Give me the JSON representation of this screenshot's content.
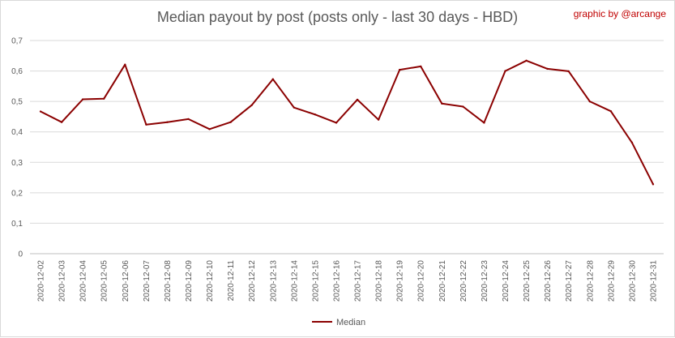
{
  "credit": "graphic by @arcange",
  "chart_data": {
    "type": "line",
    "title": "Median payout by post (posts only - last 30 days - HBD)",
    "xlabel": "",
    "ylabel": "",
    "categories": [
      "2020-12-02",
      "2020-12-03",
      "2020-12-04",
      "2020-12-05",
      "2020-12-06",
      "2020-12-07",
      "2020-12-08",
      "2020-12-09",
      "2020-12-10",
      "2020-12-11",
      "2020-12-12",
      "2020-12-13",
      "2020-12-14",
      "2020-12-15",
      "2020-12-16",
      "2020-12-17",
      "2020-12-18",
      "2020-12-19",
      "2020-12-20",
      "2020-12-21",
      "2020-12-22",
      "2020-12-23",
      "2020-12-24",
      "2020-12-25",
      "2020-12-26",
      "2020-12-27",
      "2020-12-28",
      "2020-12-29",
      "2020-12-30",
      "2020-12-31"
    ],
    "series": [
      {
        "name": "Median",
        "color": "#8b0000",
        "values": [
          0.467,
          0.432,
          0.507,
          0.509,
          0.621,
          0.424,
          0.432,
          0.442,
          0.409,
          0.432,
          0.488,
          0.573,
          0.48,
          0.457,
          0.43,
          0.506,
          0.44,
          0.604,
          0.615,
          0.493,
          0.483,
          0.43,
          0.6,
          0.634,
          0.607,
          0.599,
          0.5,
          0.468,
          0.365,
          0.228
        ]
      }
    ],
    "ylim": [
      0,
      0.7
    ],
    "yticks": [
      0,
      0.1,
      0.2,
      0.3,
      0.4,
      0.5,
      0.6,
      0.7
    ],
    "ytick_labels": [
      "0",
      "0,1",
      "0,2",
      "0,3",
      "0,4",
      "0,5",
      "0,6",
      "0,7"
    ],
    "grid": true,
    "legend_position": "bottom"
  }
}
